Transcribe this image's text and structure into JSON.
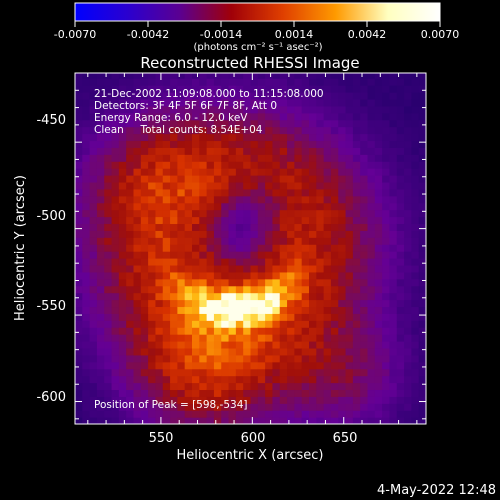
{
  "colorbar": {
    "ticks": [
      "-0.0070",
      "-0.0042",
      "-0.0014",
      "0.0014",
      "0.0042",
      "0.0070"
    ],
    "unit_label": "(photons cm⁻² s⁻¹ asec⁻²)",
    "stops": [
      "#0000ff",
      "#2a00d0",
      "#5a0092",
      "#a00008",
      "#e04000",
      "#ff9a00",
      "#ffffc0",
      "#ffffff"
    ]
  },
  "chart_data": {
    "type": "heatmap",
    "title": "Reconstructed RHESSI Image",
    "xlabel": "Heliocentric X (arcsec)",
    "ylabel": "Heliocentric Y (arcsec)",
    "xlim": [
      503,
      695
    ],
    "ylim": [
      -613,
      -410
    ],
    "xticks": [
      550,
      600,
      650
    ],
    "yticks": [
      -450,
      -500,
      -550,
      -600
    ],
    "peak": [
      598,
      -534
    ],
    "info_lines": [
      "21-Dec-2002 11:09:08.000 to 11:15:08.000",
      "Detectors: 3F 4F 5F 6F 7F 8F, Att 0",
      "Energy Range: 6.0 - 12.0 keV",
      "Clean     Total counts: 8.54E+04"
    ],
    "peak_text": "Position of Peak = [598,-534]"
  },
  "footer": {
    "timestamp": "4-May-2022 12:48"
  }
}
